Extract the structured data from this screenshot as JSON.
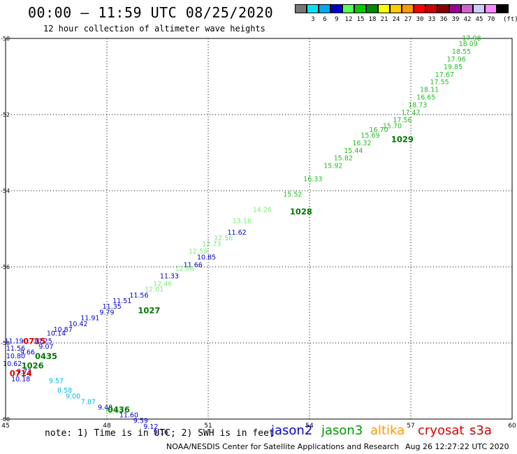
{
  "header": {
    "title": "00:00 – 11:59 UTC 08/25/2020",
    "subtitle": "12 hour collection of altimeter wave heights"
  },
  "legend": {
    "unit": "(ft)",
    "items": [
      {
        "label": "",
        "color": "#777777"
      },
      {
        "label": "3",
        "color": "#00e5ff"
      },
      {
        "label": "6",
        "color": "#00aaee"
      },
      {
        "label": "9",
        "color": "#0000cc"
      },
      {
        "label": "12",
        "color": "#55ff55"
      },
      {
        "label": "15",
        "color": "#00cc00"
      },
      {
        "label": "18",
        "color": "#008800"
      },
      {
        "label": "21",
        "color": "#ffff00"
      },
      {
        "label": "24",
        "color": "#ffcc00"
      },
      {
        "label": "27",
        "color": "#ff9900"
      },
      {
        "label": "30",
        "color": "#ff0000"
      },
      {
        "label": "33",
        "color": "#cc0000"
      },
      {
        "label": "36",
        "color": "#880000"
      },
      {
        "label": "39",
        "color": "#990099"
      },
      {
        "label": "42",
        "color": "#cc66cc"
      },
      {
        "label": "45",
        "color": "#ccccff"
      },
      {
        "label": "70",
        "color": "#ff88ff"
      },
      {
        "label": "",
        "color": "#000000"
      }
    ]
  },
  "footer": {
    "note": "note: 1) Time is in UTC; 2) SWH is in feet",
    "satellites": [
      {
        "name": "jason2",
        "color": "#0000cc"
      },
      {
        "name": "jason3",
        "color": "#009900"
      },
      {
        "name": "altika",
        "color": "#ff9900"
      },
      {
        "name": "cryosat",
        "color": "#dd0000"
      },
      {
        "name": "s3a",
        "color": "#cc0000"
      }
    ],
    "credit": "NOAA/NESDIS Center for Satellite Applications and Research",
    "timestamp": "Aug 26 12:27:22 UTC 2020"
  },
  "chart_data": {
    "type": "scatter",
    "xlim": [
      45,
      60
    ],
    "ylim": [
      -60,
      -50
    ],
    "x_ticks": [
      "45",
      "48",
      "51",
      "54",
      "57",
      "60"
    ],
    "y_ticks": [
      "-50",
      "-52",
      "-54",
      "-56",
      "-58",
      "-60"
    ],
    "grid": true,
    "grid_style": "dotted",
    "swh_labels": [
      {
        "x": 58.8,
        "y": -50.0,
        "text": "17.98",
        "color": "#22bb22"
      },
      {
        "x": 58.7,
        "y": -50.15,
        "text": "18.09",
        "color": "#22bb22"
      },
      {
        "x": 58.5,
        "y": -50.35,
        "text": "18.55",
        "color": "#22bb22"
      },
      {
        "x": 58.35,
        "y": -50.55,
        "text": "17.96",
        "color": "#22bb22"
      },
      {
        "x": 58.25,
        "y": -50.75,
        "text": "19.85",
        "color": "#22bb22"
      },
      {
        "x": 58.0,
        "y": -50.95,
        "text": "17.67",
        "color": "#22bb22"
      },
      {
        "x": 57.85,
        "y": -51.15,
        "text": "17.55",
        "color": "#22bb22"
      },
      {
        "x": 57.55,
        "y": -51.35,
        "text": "18.11",
        "color": "#22bb22"
      },
      {
        "x": 57.45,
        "y": -51.55,
        "text": "16.65",
        "color": "#22bb22"
      },
      {
        "x": 57.2,
        "y": -51.75,
        "text": "18.73",
        "color": "#22bb22"
      },
      {
        "x": 57.0,
        "y": -51.95,
        "text": "17.47",
        "color": "#22bb22"
      },
      {
        "x": 56.75,
        "y": -52.15,
        "text": "17.56",
        "color": "#22bb22"
      },
      {
        "x": 56.45,
        "y": -52.3,
        "text": "15.70",
        "color": "#22bb22"
      },
      {
        "x": 56.05,
        "y": -52.4,
        "text": "16.70",
        "color": "#22bb22"
      },
      {
        "x": 55.8,
        "y": -52.55,
        "text": "15.69",
        "color": "#22bb22"
      },
      {
        "x": 55.55,
        "y": -52.75,
        "text": "16.32",
        "color": "#22bb22"
      },
      {
        "x": 55.3,
        "y": -52.95,
        "text": "15.44",
        "color": "#22bb22"
      },
      {
        "x": 55.0,
        "y": -53.15,
        "text": "15.82",
        "color": "#22bb22"
      },
      {
        "x": 54.7,
        "y": -53.35,
        "text": "15.92",
        "color": "#22bb22"
      },
      {
        "x": 54.1,
        "y": -53.7,
        "text": "16.33",
        "color": "#22bb22"
      },
      {
        "x": 53.5,
        "y": -54.1,
        "text": "15.52",
        "color": "#22bb22"
      },
      {
        "x": 52.6,
        "y": -54.5,
        "text": "14.26",
        "color": "#77ee77"
      },
      {
        "x": 52.0,
        "y": -54.8,
        "text": "13.16",
        "color": "#77ee77"
      },
      {
        "x": 51.45,
        "y": -55.25,
        "text": "12.56",
        "color": "#77ee77"
      },
      {
        "x": 51.1,
        "y": -55.4,
        "text": "12.73",
        "color": "#77ee77"
      },
      {
        "x": 50.7,
        "y": -55.6,
        "text": "12.59",
        "color": "#77ee77"
      },
      {
        "x": 51.85,
        "y": -55.1,
        "text": "11.62",
        "color": "#0000cc"
      },
      {
        "x": 50.95,
        "y": -55.75,
        "text": "10.85",
        "color": "#0000cc"
      },
      {
        "x": 50.55,
        "y": -55.95,
        "text": "11.66",
        "color": "#0000cc"
      },
      {
        "x": 50.3,
        "y": -56.05,
        "text": "12.08",
        "color": "#77ee77"
      },
      {
        "x": 49.85,
        "y": -56.25,
        "text": "11.33",
        "color": "#0000cc"
      },
      {
        "x": 49.65,
        "y": -56.45,
        "text": "12.46",
        "color": "#77ee77"
      },
      {
        "x": 49.4,
        "y": -56.6,
        "text": "12.01",
        "color": "#77ee77"
      },
      {
        "x": 48.95,
        "y": -56.75,
        "text": "11.56",
        "color": "#0000cc"
      },
      {
        "x": 48.45,
        "y": -56.9,
        "text": "11.51",
        "color": "#0000cc"
      },
      {
        "x": 48.15,
        "y": -57.05,
        "text": "11.35",
        "color": "#0000cc"
      },
      {
        "x": 48.0,
        "y": -57.2,
        "text": "9.79",
        "color": "#0000cc"
      },
      {
        "x": 47.5,
        "y": -57.35,
        "text": "11.91",
        "color": "#0000cc"
      },
      {
        "x": 47.15,
        "y": -57.5,
        "text": "10.42",
        "color": "#0000cc"
      },
      {
        "x": 46.7,
        "y": -57.65,
        "text": "10.87",
        "color": "#0000cc"
      },
      {
        "x": 46.5,
        "y": -57.75,
        "text": "10.14",
        "color": "#0000cc"
      },
      {
        "x": 46.1,
        "y": -57.95,
        "text": "10.25",
        "color": "#0000cc"
      },
      {
        "x": 46.2,
        "y": -58.1,
        "text": "9.07",
        "color": "#0000cc"
      },
      {
        "x": 45.65,
        "y": -58.25,
        "text": "9.66",
        "color": "#0000cc"
      },
      {
        "x": 45.25,
        "y": -57.95,
        "text": "11.19",
        "color": "#0000cc"
      },
      {
        "x": 45.3,
        "y": -58.15,
        "text": "11.56",
        "color": "#0000cc"
      },
      {
        "x": 45.3,
        "y": -58.35,
        "text": "10.80",
        "color": "#0000cc"
      },
      {
        "x": 45.2,
        "y": -58.55,
        "text": "10.62",
        "color": "#0000cc"
      },
      {
        "x": 45.55,
        "y": -58.75,
        "text": "9.73",
        "color": "#0000cc"
      },
      {
        "x": 45.45,
        "y": -58.95,
        "text": "10.18",
        "color": "#0000cc"
      },
      {
        "x": 46.5,
        "y": -59.0,
        "text": "9.57",
        "color": "#00bbee"
      },
      {
        "x": 46.75,
        "y": -59.25,
        "text": "8.58",
        "color": "#00bbee"
      },
      {
        "x": 47.0,
        "y": -59.4,
        "text": "9.00",
        "color": "#00bbee"
      },
      {
        "x": 47.45,
        "y": -59.55,
        "text": "7.87",
        "color": "#00bbee"
      },
      {
        "x": 47.95,
        "y": -59.7,
        "text": "9.48",
        "color": "#0000cc"
      },
      {
        "x": 48.2,
        "y": -59.8,
        "text": "12.03",
        "color": "#77ee77"
      },
      {
        "x": 48.65,
        "y": -59.9,
        "text": "11.60",
        "color": "#0000cc"
      },
      {
        "x": 49.0,
        "y": -60.05,
        "text": "9.59",
        "color": "#0000cc"
      },
      {
        "x": 49.3,
        "y": -60.2,
        "text": "9.12",
        "color": "#0000cc"
      },
      {
        "x": 49.6,
        "y": -60.35,
        "text": "9.16",
        "color": "#0000cc"
      }
    ],
    "time_labels": [
      {
        "x": 56.75,
        "y": -52.65,
        "text": "1029",
        "color": "#007700"
      },
      {
        "x": 53.75,
        "y": -54.55,
        "text": "1028",
        "color": "#007700"
      },
      {
        "x": 49.25,
        "y": -57.15,
        "text": "1027",
        "color": "#007700"
      },
      {
        "x": 45.8,
        "y": -58.6,
        "text": "1026",
        "color": "#007700"
      },
      {
        "x": 46.2,
        "y": -58.35,
        "text": "0435",
        "color": "#007700"
      },
      {
        "x": 48.35,
        "y": -59.75,
        "text": "0436",
        "color": "#007700"
      },
      {
        "x": 45.85,
        "y": -57.95,
        "text": "0715",
        "color": "#dd0000"
      },
      {
        "x": 45.45,
        "y": -58.8,
        "text": "0714",
        "color": "#dd0000"
      }
    ]
  }
}
